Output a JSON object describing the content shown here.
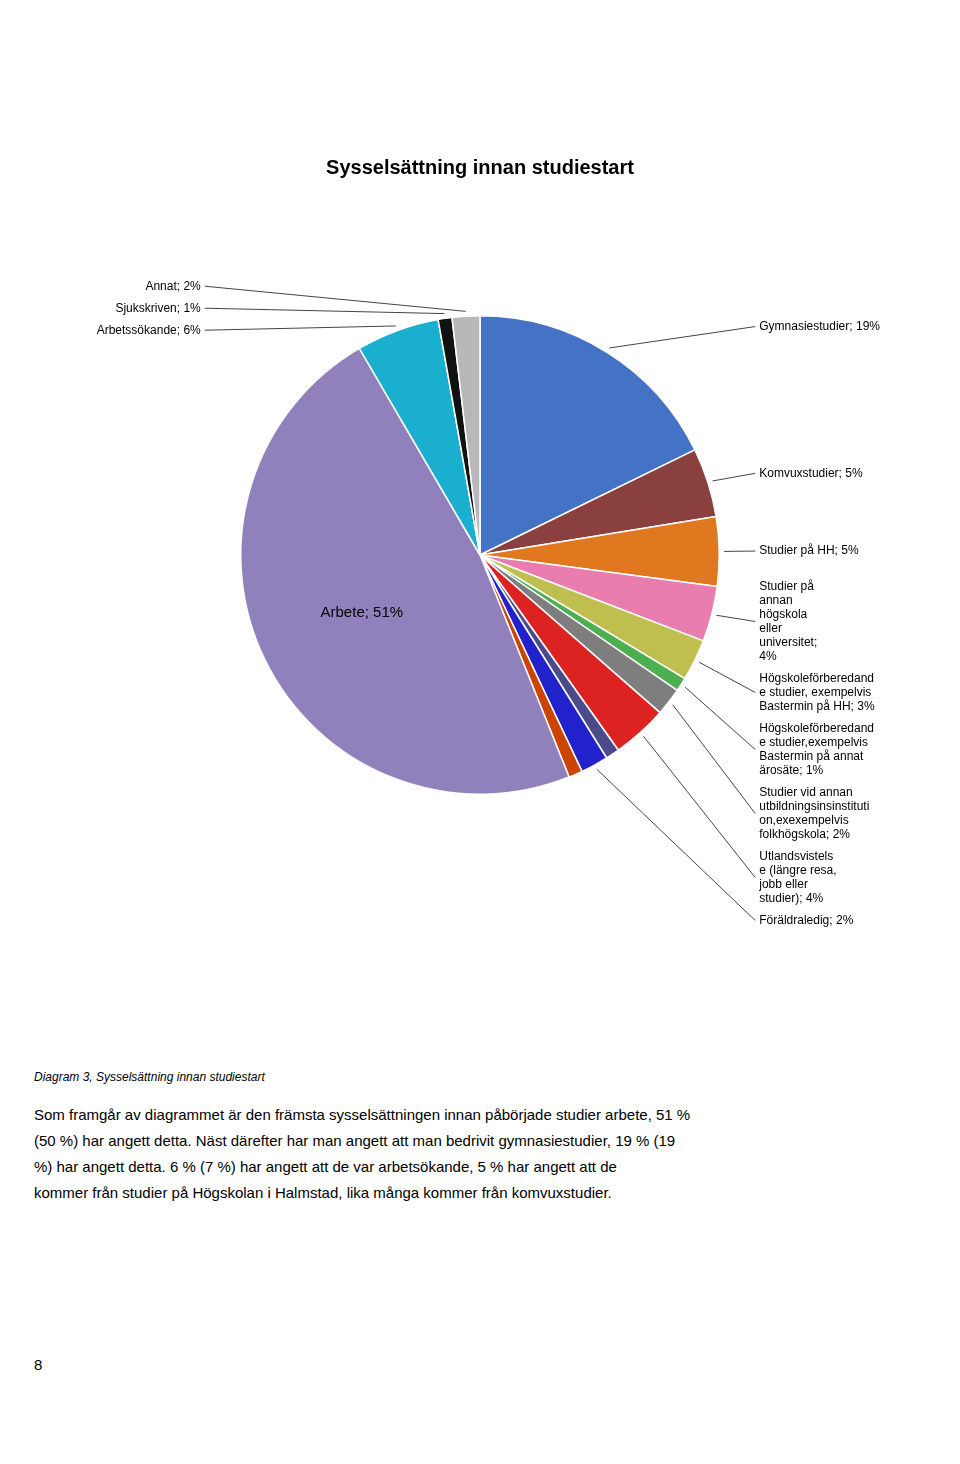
{
  "chart_data": {
    "type": "pie",
    "title": "Sysselsättning innan studiestart",
    "categories": [
      "Gymnasiestudier; 19%",
      "Komvuxstudier; 5%",
      "Studier på HH; 5%",
      "Studier på\nannan\nhögskola\neller\nuniversitet;\n4%",
      "Högskoleförberedand\ne studier, exempelvis\nBastermin på HH; 3%",
      "Högskoleförberedand\ne studier,exempelvis\nBastermin på annat\närosäte; 1%",
      "Studier vid annan\nutbildningsinsinstituti\non,exexempelvis\nfolkhögskola; 2%",
      "Utlandsvistels\ne (längre resa,\njobb eller\nstudier); 4%",
      null,
      "Föräldraledig; 2%",
      null,
      "Arbete; 51%",
      "Arbetssökande; 6%",
      "Sjukskriven; 1%",
      "Annat; 2%"
    ],
    "values": [
      19,
      5,
      5,
      4,
      3,
      1,
      2,
      4,
      1,
      2,
      1,
      51,
      6,
      1,
      2
    ],
    "colors": [
      "#4472C4",
      "#8B4040",
      "#E07820",
      "#E87DAE",
      "#BFBF50",
      "#4CAF50",
      "#7E7E7E",
      "#DD2222",
      "#4B4B8B",
      "#2222CC",
      "#CC4400",
      "#9080BC",
      "#1AAFCF",
      "#111111",
      "#B8B8B8"
    ],
    "annotations": [
      "Diagram 3, Sysselsättning innan studiestart",
      "Som framgår av diagrammet är den främsta sysselsättningen innan påbörjade studier arbete, 51 %",
      "(50 %) har angett detta. Näst därefter har man angett att man bedrivit gymnasiestudier, 19 % (19",
      "%) har angett detta. 6 % (7 %) har angett att de var arbetsökande, 5 % har angett att de",
      "kommer från studier på Högskolan i Halmstad, lika många kommer från komvuxstudier.",
      "8"
    ]
  }
}
